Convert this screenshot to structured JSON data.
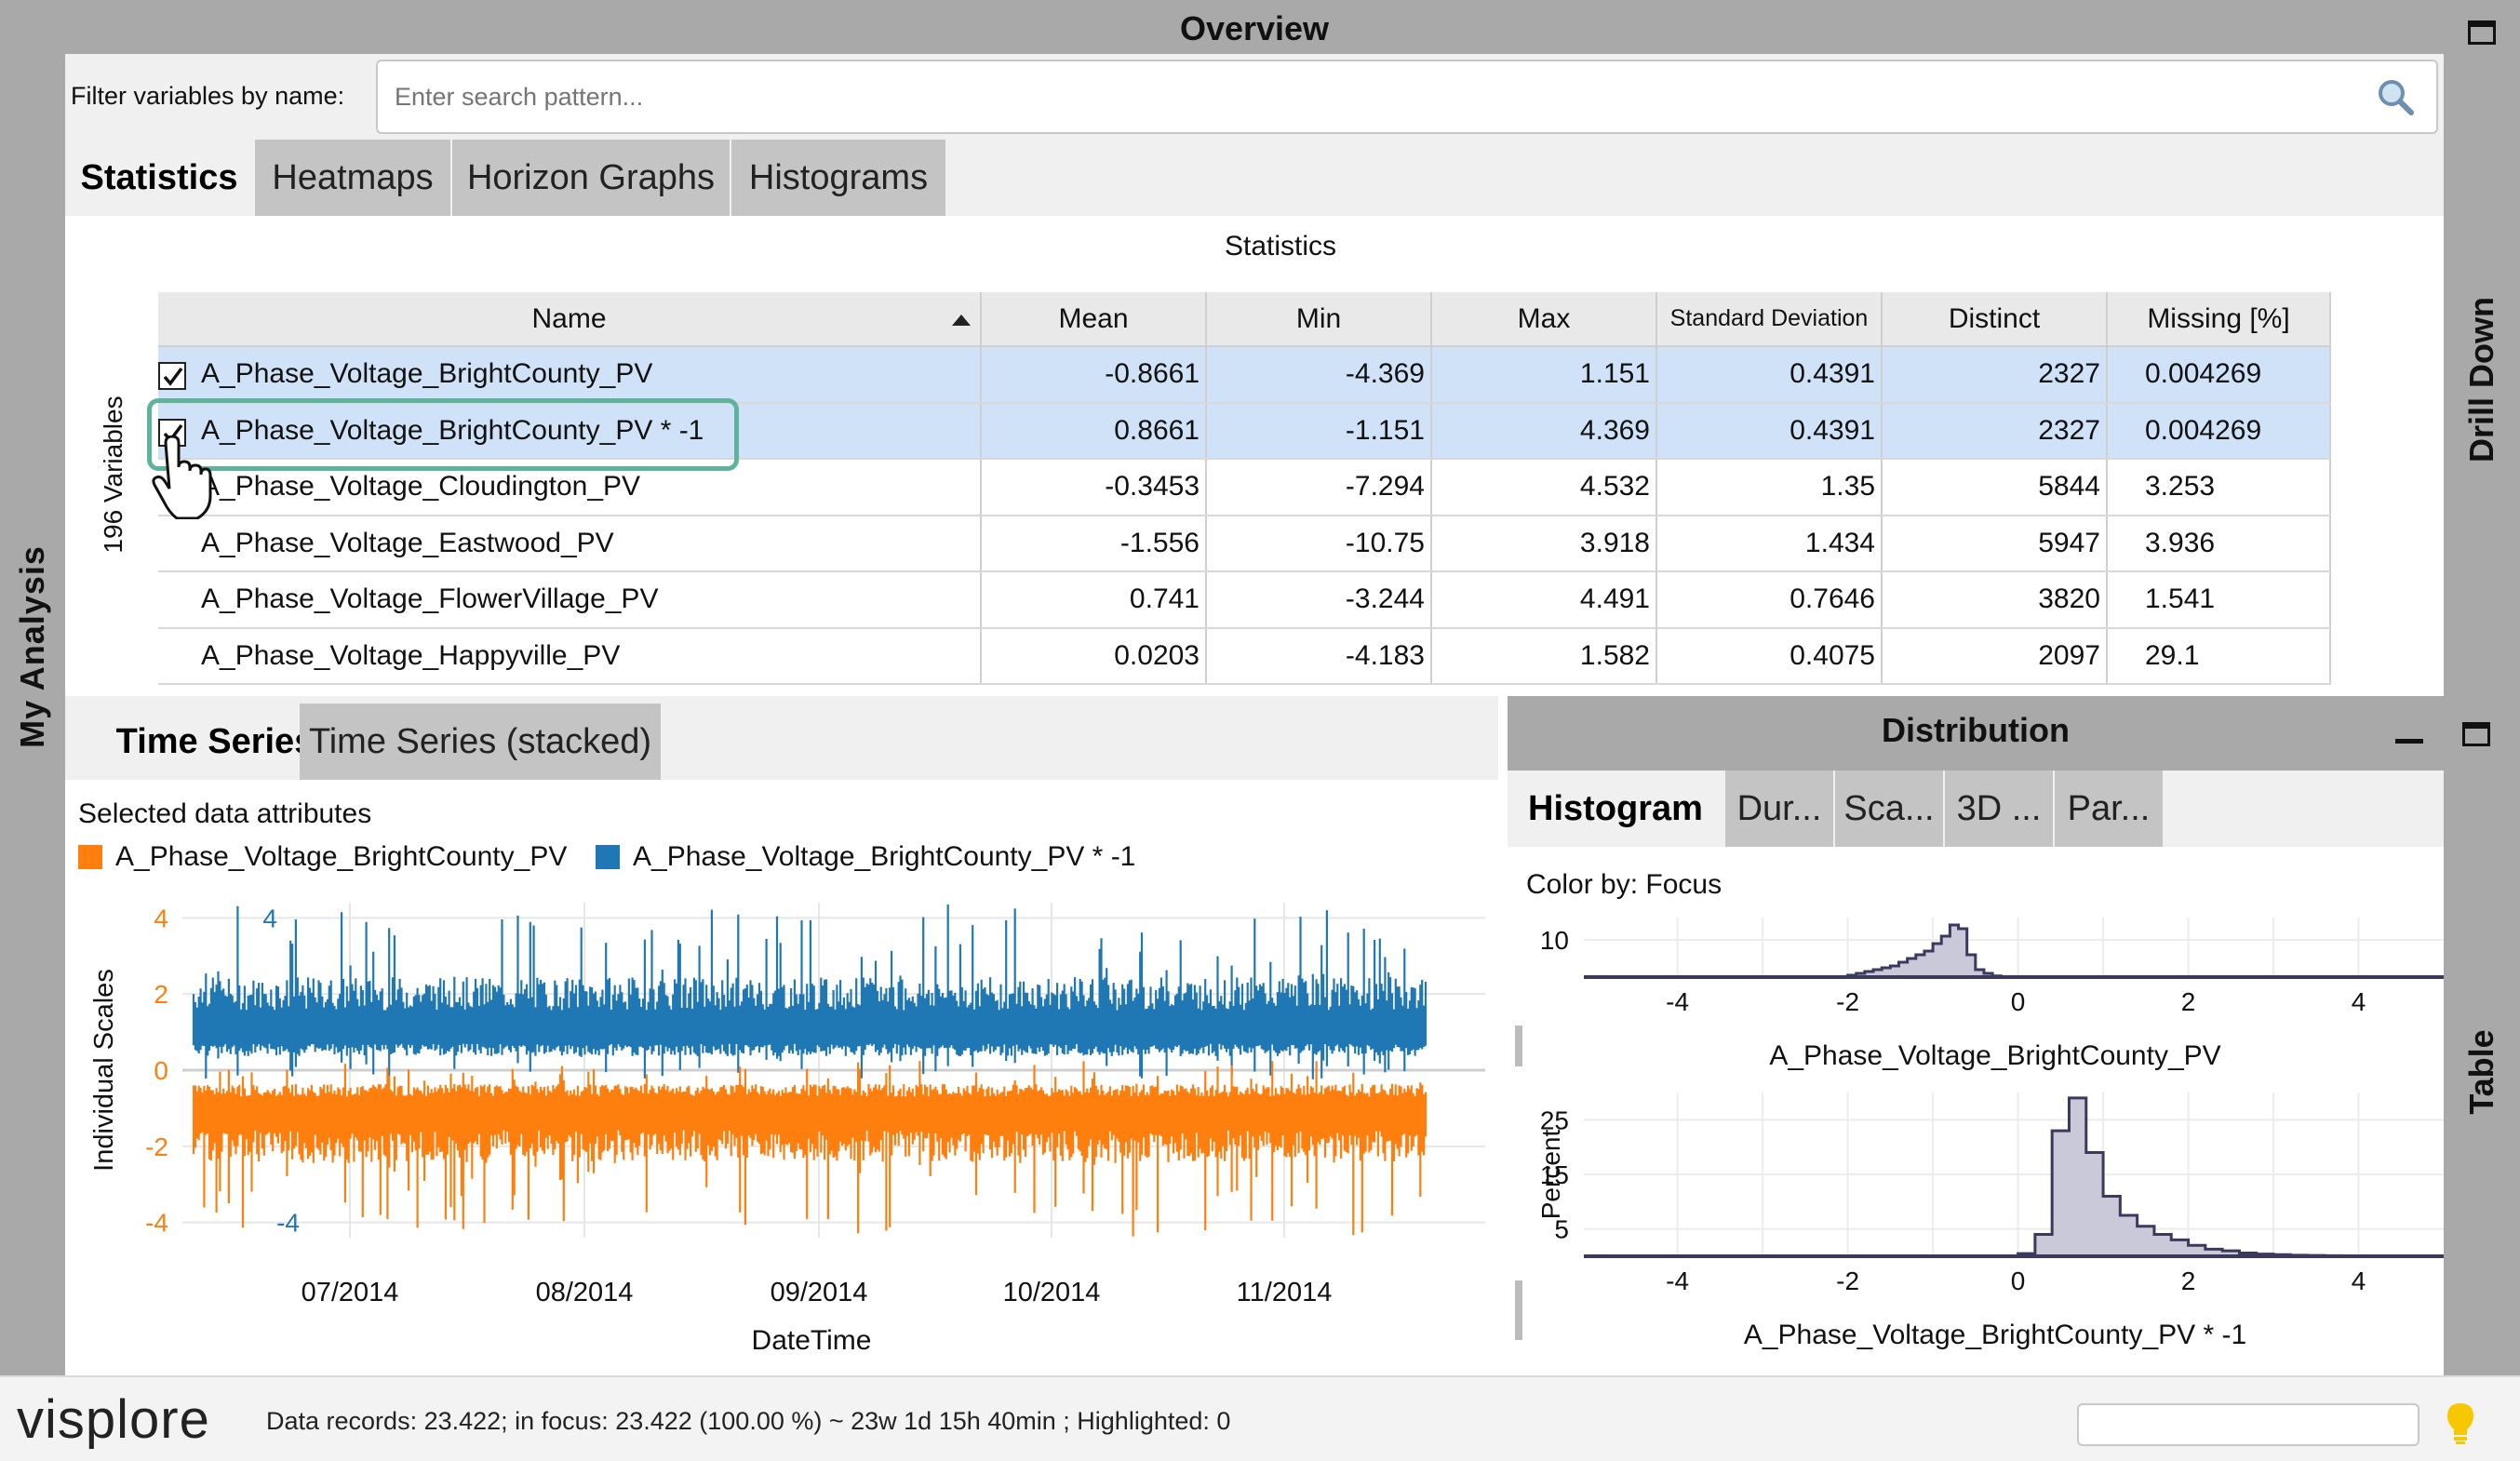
{
  "app": {
    "left_sidebar_label": "My Analysis",
    "right_sidebar_top_label": "Drill Down",
    "right_sidebar_bottom_label": "Table"
  },
  "overview": {
    "title": "Overview",
    "filter_label": "Filter variables by name:",
    "search_placeholder": "Enter search pattern...",
    "tabs": [
      "Statistics",
      "Heatmaps",
      "Horizon Graphs",
      "Histograms"
    ]
  },
  "statistics": {
    "title": "Statistics",
    "variable_count_label": "196 Variables",
    "columns": [
      "Name",
      "Mean",
      "Min",
      "Max",
      "Standard Deviation",
      "Distinct",
      "Missing [%]"
    ],
    "rows": [
      {
        "checked": true,
        "selected": true,
        "name": "A_Phase_Voltage_BrightCounty_PV",
        "mean": "-0.8661",
        "min": "-4.369",
        "max": "1.151",
        "std": "0.4391",
        "distinct": "2327",
        "missing": "0.004269"
      },
      {
        "checked": true,
        "selected": true,
        "name": "A_Phase_Voltage_BrightCounty_PV * -1",
        "mean": "0.8661",
        "min": "-1.151",
        "max": "4.369",
        "std": "0.4391",
        "distinct": "2327",
        "missing": "0.004269"
      },
      {
        "checked": false,
        "selected": false,
        "name": "A_Phase_Voltage_Cloudington_PV",
        "mean": "-0.3453",
        "min": "-7.294",
        "max": "4.532",
        "std": "1.35",
        "distinct": "5844",
        "missing": "3.253"
      },
      {
        "checked": false,
        "selected": false,
        "name": "A_Phase_Voltage_Eastwood_PV",
        "mean": "-1.556",
        "min": "-10.75",
        "max": "3.918",
        "std": "1.434",
        "distinct": "5947",
        "missing": "3.936"
      },
      {
        "checked": false,
        "selected": false,
        "name": "A_Phase_Voltage_FlowerVillage_PV",
        "mean": "0.741",
        "min": "-3.244",
        "max": "4.491",
        "std": "0.7646",
        "distinct": "3820",
        "missing": "1.541"
      },
      {
        "checked": false,
        "selected": false,
        "name": "A_Phase_Voltage_Happyville_PV",
        "mean": "0.0203",
        "min": "-4.183",
        "max": "1.582",
        "std": "0.4075",
        "distinct": "2097",
        "missing": "29.1"
      }
    ]
  },
  "time_series": {
    "tabs": [
      "Time Series",
      "Time Series (stacked)"
    ],
    "selected_label": "Selected data attributes",
    "legend": [
      {
        "name": "A_Phase_Voltage_BrightCounty_PV",
        "color": "#ff7f0e"
      },
      {
        "name": "A_Phase_Voltage_BrightCounty_PV * -1",
        "color": "#1f77b4"
      }
    ]
  },
  "distribution": {
    "title": "Distribution",
    "tabs": [
      "Histogram",
      "Dur...",
      "Sca...",
      "3D ...",
      "Par..."
    ],
    "color_by": "Color by: Focus"
  },
  "status": {
    "logo": "visplore",
    "text": "Data records: 23.422; in focus: 23.422 (100.00 %) ~ 23w 1d 15h 40min ; Highlighted: 0"
  },
  "chart_data": [
    {
      "type": "line",
      "ylabel": "Individual Scales",
      "xlabel": "DateTime",
      "x_ticks": [
        "07/2014",
        "08/2014",
        "09/2014",
        "10/2014",
        "11/2014"
      ],
      "y_ticks": [
        -4,
        -2,
        0,
        2,
        4
      ],
      "ylim": [
        -4.4,
        4.4
      ],
      "series": [
        {
          "name": "A_Phase_Voltage_BrightCounty_PV",
          "color": "#ff7f0e",
          "axis_labels": [
            "4",
            "2",
            "0",
            "-2",
            "-4"
          ],
          "mean": -0.8661,
          "min": -4.369,
          "max": 1.151
        },
        {
          "name": "A_Phase_Voltage_BrightCounty_PV * -1",
          "color": "#1f77b4",
          "axis_labels": [
            "4",
            "-4"
          ],
          "mean": 0.8661,
          "min": -1.151,
          "max": 4.369
        }
      ]
    },
    {
      "type": "bar",
      "title": "A_Phase_Voltage_BrightCounty_PV",
      "ylabel": "Percent",
      "x_ticks": [
        "-4",
        "-2",
        "0",
        "2",
        "4"
      ],
      "y_ticks": [
        "10"
      ],
      "xlim": [
        -5.1,
        5
      ],
      "ylim": [
        0,
        16
      ],
      "bin_edges": [
        -2.0,
        -1.9,
        -1.8,
        -1.7,
        -1.6,
        -1.5,
        -1.4,
        -1.3,
        -1.2,
        -1.1,
        -1.0,
        -0.9,
        -0.8,
        -0.7,
        -0.6,
        -0.5,
        -0.4,
        -0.3,
        -0.2
      ],
      "values": [
        0.5,
        1,
        1.5,
        2,
        2.5,
        3,
        4,
        5,
        6,
        7,
        9,
        11,
        14,
        13,
        6,
        2,
        1,
        0.3
      ]
    },
    {
      "type": "bar",
      "title": "A_Phase_Voltage_BrightCounty_PV * -1",
      "ylabel": "Percent",
      "x_ticks": [
        "-4",
        "-2",
        "0",
        "2",
        "4"
      ],
      "y_ticks": [
        "25",
        "15",
        "5"
      ],
      "xlim": [
        -5.1,
        5
      ],
      "ylim": [
        0,
        30
      ],
      "bin_edges": [
        0.0,
        0.2,
        0.4,
        0.6,
        0.8,
        1.0,
        1.2,
        1.4,
        1.6,
        1.8,
        2.0,
        2.2,
        2.4,
        2.6,
        2.8,
        3.0,
        3.2,
        3.4,
        3.6,
        3.8,
        4.0,
        4.2,
        4.4
      ],
      "values": [
        0.5,
        4,
        23,
        29,
        19,
        11,
        7.5,
        5.5,
        4,
        3,
        2,
        1.3,
        1,
        0.6,
        0.4,
        0.3,
        0.2,
        0.15,
        0.1,
        0.08,
        0.05,
        0.04
      ]
    }
  ]
}
